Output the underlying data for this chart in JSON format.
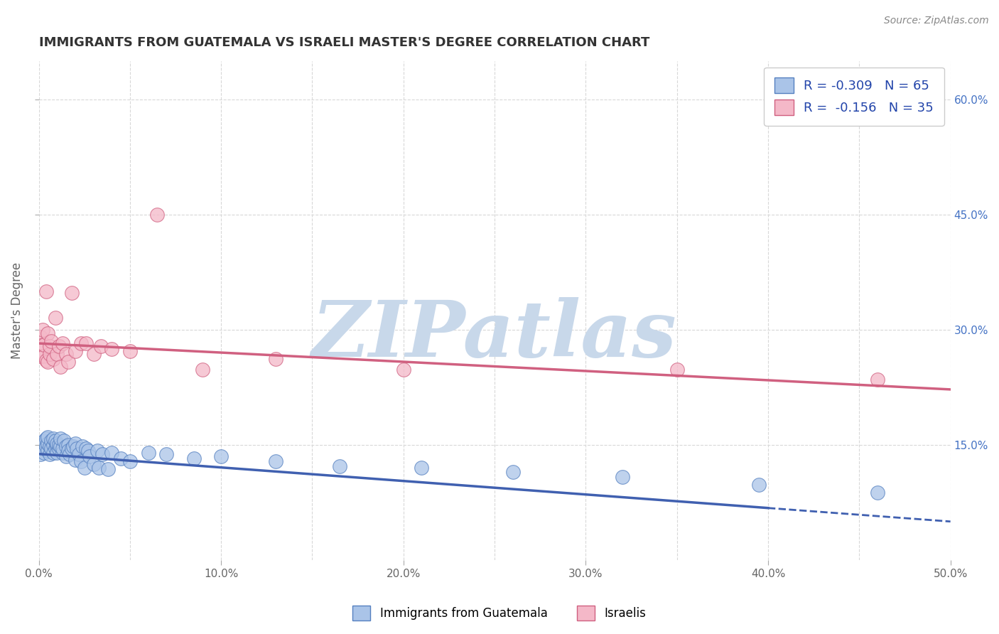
{
  "title": "IMMIGRANTS FROM GUATEMALA VS ISRAELI MASTER'S DEGREE CORRELATION CHART",
  "source": "Source: ZipAtlas.com",
  "ylabel": "Master's Degree",
  "xlim": [
    0.0,
    0.5
  ],
  "ylim": [
    0.0,
    0.65
  ],
  "xticks": [
    0.0,
    0.1,
    0.2,
    0.3,
    0.4,
    0.5
  ],
  "xtick_labels": [
    "0.0%",
    "10.0%",
    "20.0%",
    "30.0%",
    "40.0%",
    "50.0%"
  ],
  "yticks_right": [
    0.15,
    0.3,
    0.45,
    0.6
  ],
  "ytick_labels_right": [
    "15.0%",
    "30.0%",
    "45.0%",
    "60.0%"
  ],
  "blue_color": "#aac4e8",
  "pink_color": "#f4b8c8",
  "blue_edge_color": "#5580c0",
  "pink_edge_color": "#d06080",
  "blue_line_color": "#4060b0",
  "pink_line_color": "#d06080",
  "blue_R": -0.309,
  "blue_N": 65,
  "pink_R": -0.156,
  "pink_N": 35,
  "watermark": "ZIPatlas",
  "watermark_color": "#c8d8ea",
  "legend_label_blue": "Immigrants from Guatemala",
  "legend_label_pink": "Israelis",
  "blue_scatter_x": [
    0.001,
    0.002,
    0.002,
    0.003,
    0.003,
    0.004,
    0.004,
    0.005,
    0.005,
    0.005,
    0.006,
    0.006,
    0.007,
    0.007,
    0.008,
    0.008,
    0.008,
    0.009,
    0.009,
    0.01,
    0.01,
    0.01,
    0.011,
    0.011,
    0.012,
    0.012,
    0.013,
    0.013,
    0.014,
    0.015,
    0.015,
    0.016,
    0.016,
    0.017,
    0.018,
    0.019,
    0.02,
    0.02,
    0.021,
    0.022,
    0.023,
    0.024,
    0.025,
    0.026,
    0.027,
    0.028,
    0.03,
    0.032,
    0.033,
    0.035,
    0.038,
    0.04,
    0.045,
    0.05,
    0.06,
    0.07,
    0.085,
    0.1,
    0.13,
    0.165,
    0.21,
    0.26,
    0.32,
    0.395,
    0.46
  ],
  "blue_scatter_y": [
    0.138,
    0.145,
    0.15,
    0.14,
    0.155,
    0.148,
    0.158,
    0.142,
    0.152,
    0.16,
    0.138,
    0.148,
    0.155,
    0.145,
    0.15,
    0.158,
    0.14,
    0.145,
    0.155,
    0.148,
    0.152,
    0.14,
    0.145,
    0.15,
    0.148,
    0.158,
    0.14,
    0.145,
    0.155,
    0.148,
    0.135,
    0.15,
    0.142,
    0.138,
    0.145,
    0.148,
    0.152,
    0.13,
    0.145,
    0.138,
    0.128,
    0.148,
    0.12,
    0.145,
    0.142,
    0.135,
    0.125,
    0.142,
    0.12,
    0.138,
    0.118,
    0.14,
    0.132,
    0.128,
    0.14,
    0.138,
    0.132,
    0.135,
    0.128,
    0.122,
    0.12,
    0.115,
    0.108,
    0.098,
    0.088
  ],
  "pink_scatter_x": [
    0.001,
    0.001,
    0.002,
    0.002,
    0.003,
    0.003,
    0.004,
    0.004,
    0.005,
    0.005,
    0.006,
    0.006,
    0.007,
    0.008,
    0.009,
    0.01,
    0.011,
    0.012,
    0.013,
    0.015,
    0.016,
    0.018,
    0.02,
    0.023,
    0.026,
    0.03,
    0.034,
    0.04,
    0.05,
    0.065,
    0.09,
    0.13,
    0.2,
    0.35,
    0.46
  ],
  "pink_scatter_y": [
    0.265,
    0.29,
    0.28,
    0.3,
    0.265,
    0.28,
    0.26,
    0.35,
    0.258,
    0.295,
    0.268,
    0.278,
    0.285,
    0.262,
    0.315,
    0.268,
    0.278,
    0.252,
    0.282,
    0.268,
    0.258,
    0.348,
    0.272,
    0.282,
    0.282,
    0.268,
    0.278,
    0.275,
    0.272,
    0.45,
    0.248,
    0.262,
    0.248,
    0.248,
    0.235
  ],
  "grid_color": "#d8d8d8",
  "background_color": "#ffffff",
  "title_color": "#333333",
  "axis_label_color": "#666666",
  "tick_label_color_right": "#4472c4",
  "blue_trend_solid_end": 0.4,
  "blue_trend_start_y": 0.138,
  "blue_trend_end_y": 0.05,
  "pink_trend_start_y": 0.282,
  "pink_trend_end_y": 0.222
}
